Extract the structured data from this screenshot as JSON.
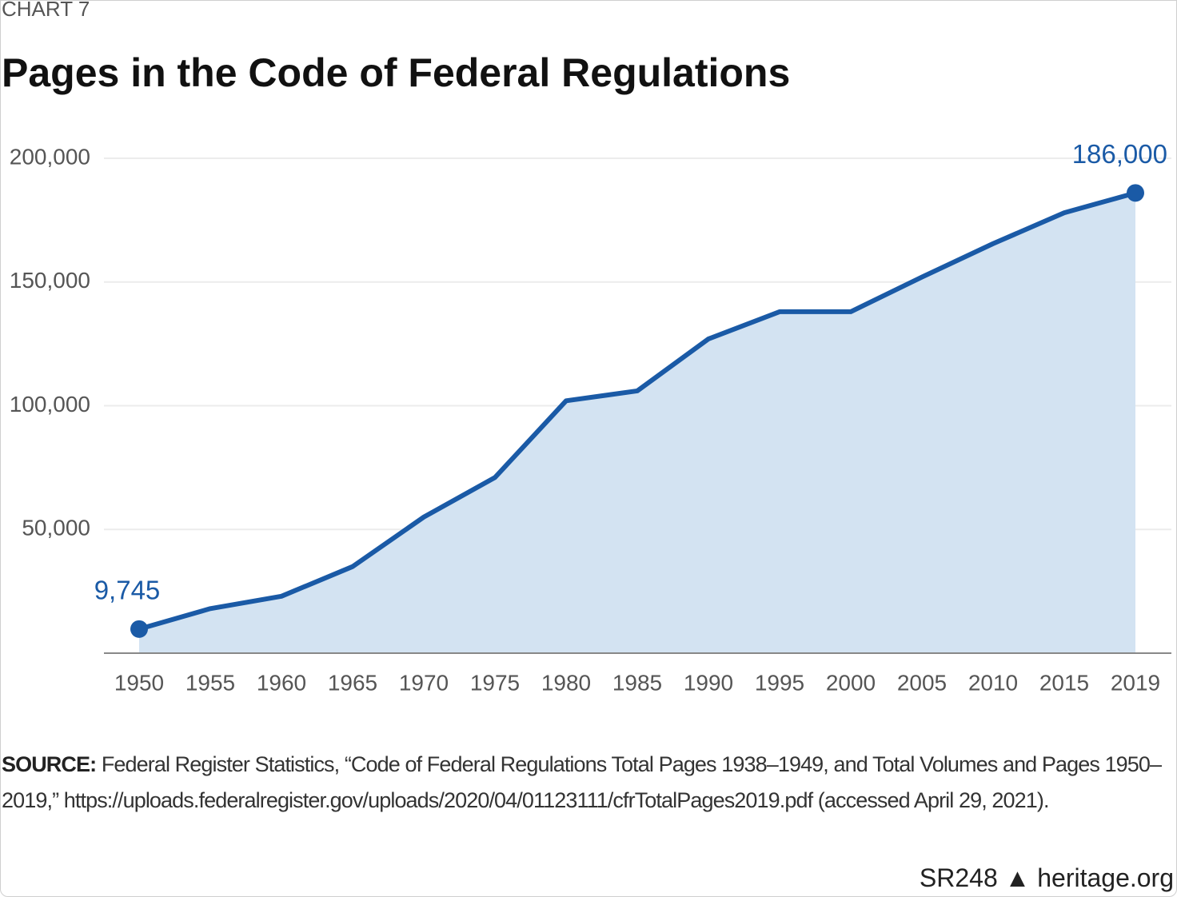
{
  "chart_data": {
    "type": "area",
    "kicker": "CHART 7",
    "title": "Pages in the Code of Federal Regulations",
    "categories": [
      "1950",
      "1955",
      "1960",
      "1965",
      "1970",
      "1975",
      "1980",
      "1985",
      "1990",
      "1995",
      "2000",
      "2005",
      "2010",
      "2015",
      "2019"
    ],
    "values": [
      9745,
      18000,
      23000,
      35000,
      55000,
      71000,
      102000,
      106000,
      127000,
      138000,
      138000,
      152000,
      165500,
      178000,
      186000
    ],
    "value_labels": [
      "9,745",
      null,
      null,
      null,
      null,
      null,
      null,
      null,
      null,
      null,
      null,
      null,
      null,
      null,
      "186,000"
    ],
    "color": "#1a5aa6",
    "fill_color": "#d3e3f2",
    "ylim": [
      0,
      200000
    ],
    "yticks": [
      {
        "value": 50000,
        "label": "50,000"
      },
      {
        "value": 100000,
        "label": "100,000"
      },
      {
        "value": 150000,
        "label": "150,000"
      },
      {
        "value": 200000,
        "label": "200,000"
      }
    ],
    "grid": true,
    "source_label": "SOURCE:",
    "source": "Federal Register Statistics, “Code of Federal Regulations Total Pages 1938–1949, and Total Volumes and Pages 1950–2019,” https://uploads.federalregister.gov/uploads/2020/04/01123111/cfrTotalPages2019.pdf (accessed April 29, 2021).",
    "report_id": "SR248",
    "site": "heritage.org"
  }
}
